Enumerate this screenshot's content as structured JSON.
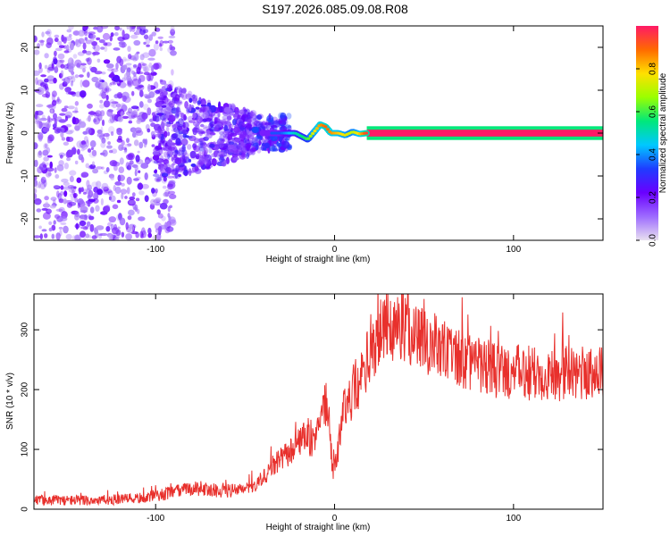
{
  "title": "S197.2026.085.09.08.R08",
  "colors": {
    "signal_line": "#e8302c",
    "baseline_band": "#ff1a66",
    "axis": "#000000",
    "background": "#ffffff",
    "colorbar_stops": [
      "#e8e0f0",
      "#9d6bff",
      "#6a00ff",
      "#1f3cff",
      "#00c8ff",
      "#00e87a",
      "#9aff00",
      "#ffe000",
      "#ff6a00",
      "#ff1a66"
    ]
  },
  "chart_data": [
    {
      "type": "heatmap",
      "title": "",
      "xlabel": "Height of straight line (km)",
      "ylabel": "Frequency (Hz)",
      "xlim": [
        -168,
        150
      ],
      "ylim": [
        -25,
        25
      ],
      "xticks": [
        -100,
        0,
        100
      ],
      "yticks": [
        -20,
        -10,
        0,
        10,
        20
      ],
      "colorbar": {
        "label": "Normalized spectral amplitude",
        "range": [
          0,
          1
        ],
        "ticks": [
          0.0,
          0.2,
          0.4,
          0.6,
          0.8
        ]
      },
      "ridge": {
        "description_x_knots": [
          -30,
          -22,
          -15,
          -12,
          -8,
          -5,
          -2,
          2,
          6,
          10,
          14,
          18,
          150
        ],
        "freq_knots": [
          0,
          0,
          -1.5,
          0,
          2,
          1.5,
          0,
          0,
          -0.5,
          0.3,
          -0.2,
          0,
          0
        ],
        "amplitude_knots": [
          0.35,
          0.5,
          0.6,
          0.75,
          0.85,
          0.9,
          0.85,
          0.8,
          0.75,
          0.7,
          0.8,
          0.95,
          0.95
        ]
      },
      "scatter_regions": [
        {
          "x_range": [
            -168,
            -90
          ],
          "freq_spread": 25,
          "amplitude": [
            0.05,
            0.25
          ]
        },
        {
          "x_range": [
            -100,
            -45
          ],
          "freq_spread": 12,
          "amplitude": [
            0.1,
            0.3
          ]
        },
        {
          "x_range": [
            -45,
            -25
          ],
          "freq_spread": 4,
          "amplitude": [
            0.2,
            0.35
          ]
        }
      ]
    },
    {
      "type": "line",
      "title": "",
      "xlabel": "Height of straight line (km)",
      "ylabel": "SNR (10 * v/v)",
      "xlim": [
        -168,
        150
      ],
      "ylim": [
        0,
        360
      ],
      "xticks": [
        -100,
        0,
        100
      ],
      "yticks": [
        0,
        100,
        200,
        300
      ],
      "series": [
        {
          "name": "SNR",
          "trend_x": [
            -168,
            -130,
            -110,
            -95,
            -80,
            -60,
            -45,
            -35,
            -25,
            -18,
            -12,
            -8,
            -4,
            -1,
            2,
            5,
            10,
            15,
            20,
            25,
            30,
            35,
            40,
            50,
            60,
            70,
            80,
            90,
            100,
            120,
            135,
            150
          ],
          "trend_y": [
            15,
            15,
            18,
            25,
            35,
            30,
            35,
            70,
            95,
            120,
            110,
            160,
            180,
            60,
            100,
            170,
            190,
            220,
            265,
            290,
            305,
            310,
            300,
            285,
            265,
            250,
            240,
            232,
            228,
            225,
            228,
            230
          ]
        }
      ]
    }
  ]
}
